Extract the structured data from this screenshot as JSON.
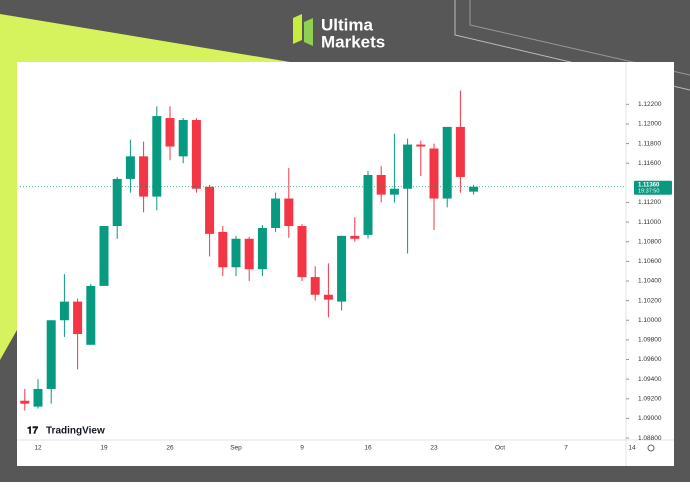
{
  "brand": {
    "name_top": "Ultima",
    "name_bottom": "Markets"
  },
  "chart_data": {
    "type": "candlestick",
    "watermark": "TradingView",
    "categories": [
      null,
      "12",
      null,
      null,
      null,
      null,
      "19",
      null,
      null,
      null,
      null,
      "26",
      null,
      null,
      null,
      null,
      "Sep",
      null,
      null,
      null,
      null,
      "9",
      null,
      null,
      null,
      null,
      "16",
      null,
      null,
      null,
      null,
      "23",
      null,
      null,
      null,
      null,
      "Oct",
      null,
      null,
      null,
      null,
      "7",
      null,
      null,
      null,
      null,
      "14"
    ],
    "open": [
      1.0918,
      1.0912,
      1.093,
      1.1,
      1.1019,
      1.0975,
      1.1035,
      1.1096,
      1.1144,
      1.1167,
      1.1126,
      1.1206,
      1.1167,
      1.1204,
      1.1136,
      1.109,
      1.1054,
      1.1083,
      1.1052,
      1.1094,
      1.1124,
      1.1096,
      1.1044,
      1.1026,
      1.1019,
      1.1086,
      1.1087,
      1.1148,
      1.1128,
      1.1134,
      1.1179,
      1.1175,
      1.1124,
      1.1197,
      1.1131,
      null,
      null,
      null,
      null,
      null,
      null,
      null,
      null,
      null,
      null,
      null,
      null
    ],
    "high": [
      1.093,
      1.094,
      1.1,
      1.1047,
      1.1022,
      1.1037,
      1.1096,
      1.1146,
      1.1184,
      1.1182,
      1.1218,
      1.1218,
      1.1206,
      1.1206,
      1.1138,
      1.1096,
      1.1086,
      1.1085,
      1.1097,
      1.113,
      1.1155,
      1.1098,
      1.1055,
      1.1058,
      1.1086,
      1.1105,
      1.1152,
      1.1157,
      1.119,
      1.1185,
      1.1183,
      1.118,
      1.1197,
      1.1234,
      1.1138,
      null,
      null,
      null,
      null,
      null,
      null,
      null,
      null,
      null,
      null,
      null,
      null
    ],
    "low": [
      1.0908,
      1.091,
      1.0915,
      1.0983,
      1.095,
      1.0975,
      1.1035,
      1.1083,
      1.113,
      1.111,
      1.1112,
      1.1163,
      1.116,
      1.113,
      1.1065,
      1.1045,
      1.1045,
      1.104,
      1.1045,
      1.109,
      1.1084,
      1.104,
      1.102,
      1.1003,
      1.101,
      1.108,
      1.1083,
      1.112,
      1.112,
      1.1068,
      1.1147,
      1.1092,
      1.1115,
      1.113,
      1.1128,
      null,
      null,
      null,
      null,
      null,
      null,
      null,
      null,
      null,
      null,
      null,
      null
    ],
    "close": [
      1.0915,
      1.093,
      1.1,
      1.1019,
      1.0986,
      1.1035,
      1.1096,
      1.1144,
      1.1167,
      1.1126,
      1.1208,
      1.1177,
      1.1204,
      1.1134,
      1.1088,
      1.1054,
      1.1083,
      1.1052,
      1.1094,
      1.1124,
      1.1096,
      1.1044,
      1.1026,
      1.1021,
      1.1086,
      1.1083,
      1.1148,
      1.1128,
      1.1134,
      1.1179,
      1.1177,
      1.1124,
      1.1197,
      1.1146,
      1.1136,
      null,
      null,
      null,
      null,
      null,
      null,
      null,
      null,
      null,
      null,
      null,
      null
    ],
    "up_color": "#089981",
    "down_color": "#f23645",
    "ylim": [
      1.0878,
      1.1257
    ],
    "yticks": [
      {
        "value": 1.088,
        "label": "1.08800"
      },
      {
        "value": 1.09,
        "label": "1.09000"
      },
      {
        "value": 1.092,
        "label": "1.09200"
      },
      {
        "value": 1.094,
        "label": "1.09400"
      },
      {
        "value": 1.096,
        "label": "1.09600"
      },
      {
        "value": 1.098,
        "label": "1.09800"
      },
      {
        "value": 1.1,
        "label": "1.10000"
      },
      {
        "value": 1.102,
        "label": "1.10200"
      },
      {
        "value": 1.104,
        "label": "1.10400"
      },
      {
        "value": 1.106,
        "label": "1.10600"
      },
      {
        "value": 1.108,
        "label": "1.10800"
      },
      {
        "value": 1.11,
        "label": "1.11000"
      },
      {
        "value": 1.112,
        "label": "1.11200"
      },
      {
        "value": 1.116,
        "label": "1.11600"
      },
      {
        "value": 1.118,
        "label": "1.11800"
      },
      {
        "value": 1.12,
        "label": "1.12000"
      },
      {
        "value": 1.122,
        "label": "1.12200"
      }
    ],
    "last_price": {
      "value": 1.1136,
      "label": "1.11360",
      "countdown": "19:37:50",
      "color": "#089981"
    }
  }
}
